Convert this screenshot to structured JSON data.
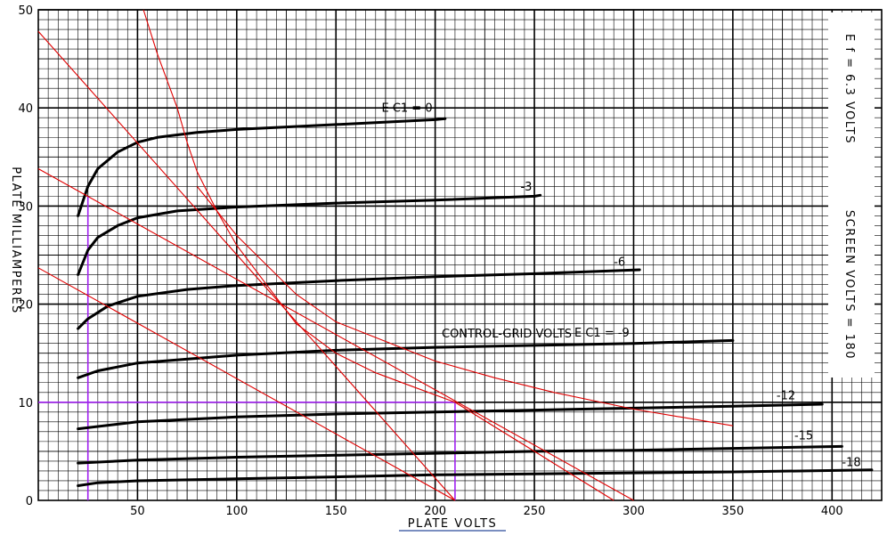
{
  "chart_data": {
    "type": "line",
    "xlabel": "PLATE VOLTS",
    "ylabel": "PLATE MILLIAMPERES",
    "xlim": [
      0,
      425
    ],
    "ylim": [
      0,
      50
    ],
    "x_ticks": [
      "50",
      "100",
      "150",
      "200",
      "250",
      "300",
      "350",
      "400"
    ],
    "y_ticks": [
      "0",
      "10",
      "20",
      "30",
      "40",
      "50"
    ],
    "grid": true,
    "side_labels": {
      "heater": "E f = 6.3 VOLTS",
      "screen": "SCREEN VOLTS = 180"
    },
    "grid_label_text": "CONTROL-GRID VOLTS",
    "series": [
      {
        "name": "E C1 = 0",
        "label": "E C1 = 0",
        "color": "#000000",
        "points": [
          [
            20,
            29
          ],
          [
            25,
            32
          ],
          [
            30,
            33.8
          ],
          [
            40,
            35.5
          ],
          [
            50,
            36.5
          ],
          [
            60,
            37
          ],
          [
            80,
            37.5
          ],
          [
            100,
            37.8
          ],
          [
            150,
            38.3
          ],
          [
            200,
            38.8
          ],
          [
            205,
            38.9
          ]
        ]
      },
      {
        "name": "-3",
        "label": "-3",
        "color": "#000000",
        "points": [
          [
            20,
            23
          ],
          [
            25,
            25.5
          ],
          [
            30,
            26.8
          ],
          [
            40,
            28
          ],
          [
            50,
            28.8
          ],
          [
            70,
            29.5
          ],
          [
            100,
            29.9
          ],
          [
            150,
            30.3
          ],
          [
            200,
            30.6
          ],
          [
            250,
            31
          ],
          [
            253,
            31.1
          ]
        ]
      },
      {
        "name": "E C1 = -9",
        "label": "E C1 = -9",
        "color": "#000000",
        "points": [
          [
            20,
            12.5
          ],
          [
            30,
            13.2
          ],
          [
            50,
            14
          ],
          [
            100,
            14.8
          ],
          [
            150,
            15.3
          ],
          [
            200,
            15.6
          ],
          [
            250,
            15.8
          ],
          [
            300,
            16
          ],
          [
            350,
            16.3
          ]
        ]
      },
      {
        "name": "-6",
        "label": "-6",
        "color": "#000000",
        "points": [
          [
            20,
            17.5
          ],
          [
            25,
            18.5
          ],
          [
            35,
            19.8
          ],
          [
            50,
            20.8
          ],
          [
            75,
            21.5
          ],
          [
            100,
            21.9
          ],
          [
            150,
            22.4
          ],
          [
            200,
            22.8
          ],
          [
            250,
            23.1
          ],
          [
            303,
            23.5
          ]
        ]
      },
      {
        "name": "-12",
        "label": "-12",
        "color": "#000000",
        "points": [
          [
            20,
            7.3
          ],
          [
            50,
            8
          ],
          [
            100,
            8.5
          ],
          [
            150,
            8.8
          ],
          [
            200,
            9
          ],
          [
            250,
            9.2
          ],
          [
            300,
            9.4
          ],
          [
            350,
            9.6
          ],
          [
            395,
            9.8
          ]
        ]
      },
      {
        "name": "-15",
        "label": "-15",
        "color": "#000000",
        "points": [
          [
            20,
            3.8
          ],
          [
            50,
            4.1
          ],
          [
            100,
            4.4
          ],
          [
            150,
            4.6
          ],
          [
            200,
            4.8
          ],
          [
            250,
            5
          ],
          [
            300,
            5.1
          ],
          [
            350,
            5.3
          ],
          [
            405,
            5.5
          ]
        ]
      },
      {
        "name": "-18",
        "label": "-18",
        "color": "#000000",
        "points": [
          [
            20,
            1.5
          ],
          [
            30,
            1.8
          ],
          [
            50,
            2
          ],
          [
            100,
            2.2
          ],
          [
            150,
            2.4
          ],
          [
            200,
            2.6
          ],
          [
            250,
            2.7
          ],
          [
            300,
            2.8
          ],
          [
            350,
            2.9
          ],
          [
            420,
            3.1
          ]
        ]
      }
    ],
    "load_lines": [
      {
        "color": "#e00000",
        "points": [
          [
            0,
            47.8
          ],
          [
            210,
            0
          ]
        ]
      },
      {
        "color": "#e00000",
        "points": [
          [
            0,
            33.8
          ],
          [
            300,
            0
          ]
        ]
      },
      {
        "color": "#e00000",
        "points": [
          [
            0,
            23.7
          ],
          [
            210,
            0
          ]
        ]
      },
      {
        "color": "#e00000",
        "points": [
          [
            53,
            50
          ],
          [
            60,
            45.5
          ],
          [
            70,
            40
          ],
          [
            75,
            36.5
          ],
          [
            80,
            33.5
          ],
          [
            90,
            29.5
          ],
          [
            100,
            26
          ],
          [
            115,
            22
          ],
          [
            130,
            18
          ],
          [
            150,
            15
          ],
          [
            170,
            13
          ],
          [
            190,
            11.5
          ],
          [
            210,
            10
          ],
          [
            230,
            7.5
          ],
          [
            250,
            5
          ],
          [
            270,
            2.5
          ],
          [
            290,
            0
          ]
        ]
      },
      {
        "color": "#e00000",
        "points": [
          [
            80,
            32
          ],
          [
            100,
            27
          ],
          [
            130,
            21
          ],
          [
            150,
            18.2
          ],
          [
            180,
            15.8
          ],
          [
            200,
            14.2
          ],
          [
            230,
            12.5
          ],
          [
            260,
            11
          ],
          [
            300,
            9.3
          ],
          [
            350,
            7.6
          ]
        ]
      }
    ],
    "reference_lines": [
      {
        "color": "#a020f0",
        "x": 25,
        "y_range": [
          0,
          31
        ]
      },
      {
        "color": "#a020f0",
        "y": 10,
        "x_range": [
          0,
          210
        ]
      },
      {
        "color": "#a020f0",
        "x": 210,
        "y_range": [
          0,
          10
        ]
      }
    ]
  }
}
